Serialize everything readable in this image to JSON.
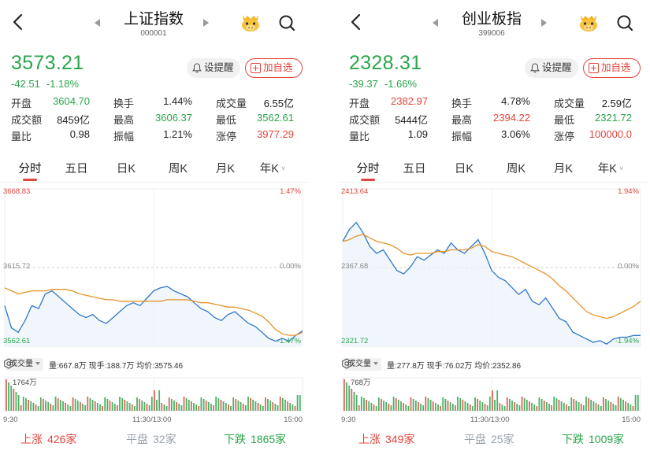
{
  "colors": {
    "up": "#e2453c",
    "down": "#2aa54a",
    "price_line": "#2e78c7",
    "avg_line": "#e8932a",
    "flat": "#9aa3ad"
  },
  "panels": [
    {
      "title": "上证指数",
      "code": "000001",
      "price": "3573.21",
      "change": "-42.51",
      "change_pct": "-1.18%",
      "remind_label": "设提醒",
      "add_label": "加自选",
      "stats": [
        [
          {
            "label": "开盘",
            "value": "3604.70",
            "color": "down"
          },
          {
            "label": "换手",
            "value": "1.44%",
            "color": "black"
          },
          {
            "label": "成交量",
            "value": "6.55亿",
            "color": "black"
          }
        ],
        [
          {
            "label": "成交额",
            "value": "8459亿",
            "color": "black"
          },
          {
            "label": "最高",
            "value": "3606.37",
            "color": "down"
          },
          {
            "label": "最低",
            "value": "3562.61",
            "color": "down"
          }
        ],
        [
          {
            "label": "量比",
            "value": "0.98",
            "color": "black"
          },
          {
            "label": "振幅",
            "value": "1.21%",
            "color": "black"
          },
          {
            "label": "涨停",
            "value": "3977.29",
            "color": "up"
          }
        ]
      ],
      "tabs": [
        "分时",
        "五日",
        "日K",
        "周K",
        "月K",
        "年K"
      ],
      "active_tab": 0,
      "chart_labels": {
        "top_left": "3668.83",
        "top_right": "1.47%",
        "mid_left": "3615.72",
        "mid_right": "0.00%",
        "bottom_left": "3562.61",
        "bottom_right": "-1.47%"
      },
      "vol_selector": "成交量",
      "vol_info": "量:667.8万  现手:188.7万  均价:3575.46",
      "vol_max": "1764万",
      "time_start": "9:30",
      "time_mid": "11:30/13:00",
      "time_end": "15:00",
      "rise_label": "上涨",
      "rise_count": "426家",
      "flat_label": "平盘",
      "flat_count": "32家",
      "fall_label": "下跌",
      "fall_count": "1865家",
      "chart_data": {
        "type": "line",
        "ylim": [
          3562.61,
          3668.83
        ],
        "prev_close": 3615.72,
        "price": [
          3590,
          3575,
          3572,
          3580,
          3590,
          3588,
          3598,
          3600,
          3596,
          3592,
          3588,
          3584,
          3582,
          3584,
          3580,
          3578,
          3582,
          3586,
          3590,
          3592,
          3590,
          3595,
          3600,
          3602,
          3603,
          3600,
          3598,
          3596,
          3592,
          3588,
          3586,
          3582,
          3580,
          3584,
          3586,
          3582,
          3578,
          3576,
          3572,
          3568,
          3566,
          3568,
          3566,
          3570,
          3573
        ],
        "avg": [
          3602,
          3600,
          3598,
          3599,
          3600,
          3600,
          3600,
          3601,
          3601,
          3601,
          3600,
          3598,
          3597,
          3596,
          3595,
          3594,
          3594,
          3593,
          3593,
          3593,
          3593,
          3593,
          3593,
          3593,
          3594,
          3594,
          3594,
          3594,
          3593,
          3592,
          3592,
          3591,
          3590,
          3589,
          3589,
          3588,
          3587,
          3585,
          3583,
          3579,
          3574,
          3571,
          3570,
          3570,
          3572
        ]
      }
    },
    {
      "title": "创业板指",
      "code": "399006",
      "price": "2328.31",
      "change": "-39.37",
      "change_pct": "-1.66%",
      "remind_label": "设提醒",
      "add_label": "加自选",
      "stats": [
        [
          {
            "label": "开盘",
            "value": "2382.97",
            "color": "up"
          },
          {
            "label": "换手",
            "value": "4.78%",
            "color": "black"
          },
          {
            "label": "成交量",
            "value": "2.59亿",
            "color": "black"
          }
        ],
        [
          {
            "label": "成交额",
            "value": "5444亿",
            "color": "black"
          },
          {
            "label": "最高",
            "value": "2394.22",
            "color": "up"
          },
          {
            "label": "最低",
            "value": "2321.72",
            "color": "down"
          }
        ],
        [
          {
            "label": "量比",
            "value": "1.09",
            "color": "black"
          },
          {
            "label": "振幅",
            "value": "3.06%",
            "color": "black"
          },
          {
            "label": "涨停",
            "value": "100000.0",
            "color": "up"
          }
        ]
      ],
      "tabs": [
        "分时",
        "五日",
        "日K",
        "周K",
        "月K",
        "年K"
      ],
      "active_tab": 0,
      "chart_labels": {
        "top_left": "2413.64",
        "top_right": "1.94%",
        "mid_left": "2367.68",
        "mid_right": "0.00%",
        "bottom_left": "2321.72",
        "bottom_right": "-1.94%"
      },
      "vol_selector": "成交量",
      "vol_info": "量:277.8万  现手:76.02万  均价:2352.86",
      "vol_max": "768万",
      "time_start": "9:30",
      "time_mid": "11:30/13:00",
      "time_end": "15:00",
      "rise_label": "上涨",
      "rise_count": "349家",
      "flat_label": "平盘",
      "flat_count": "25家",
      "fall_label": "下跌",
      "fall_count": "1009家",
      "chart_data": {
        "type": "line",
        "ylim": [
          2321.72,
          2413.64
        ],
        "prev_close": 2367.68,
        "price": [
          2383,
          2390,
          2394,
          2388,
          2380,
          2376,
          2378,
          2372,
          2366,
          2364,
          2368,
          2374,
          2372,
          2375,
          2378,
          2376,
          2382,
          2378,
          2376,
          2380,
          2384,
          2376,
          2366,
          2362,
          2360,
          2356,
          2352,
          2355,
          2348,
          2346,
          2350,
          2344,
          2338,
          2336,
          2330,
          2328,
          2326,
          2324,
          2325,
          2323,
          2326,
          2327,
          2327,
          2328,
          2328
        ],
        "avg": [
          2383,
          2384,
          2386,
          2387,
          2385,
          2383,
          2382,
          2381,
          2379,
          2376,
          2375,
          2376,
          2376,
          2376,
          2377,
          2377,
          2378,
          2378,
          2378,
          2379,
          2381,
          2380,
          2377,
          2376,
          2375,
          2374,
          2372,
          2370,
          2368,
          2366,
          2364,
          2361,
          2357,
          2354,
          2350,
          2346,
          2342,
          2340,
          2339,
          2338,
          2339,
          2341,
          2343,
          2345,
          2348
        ]
      }
    }
  ]
}
